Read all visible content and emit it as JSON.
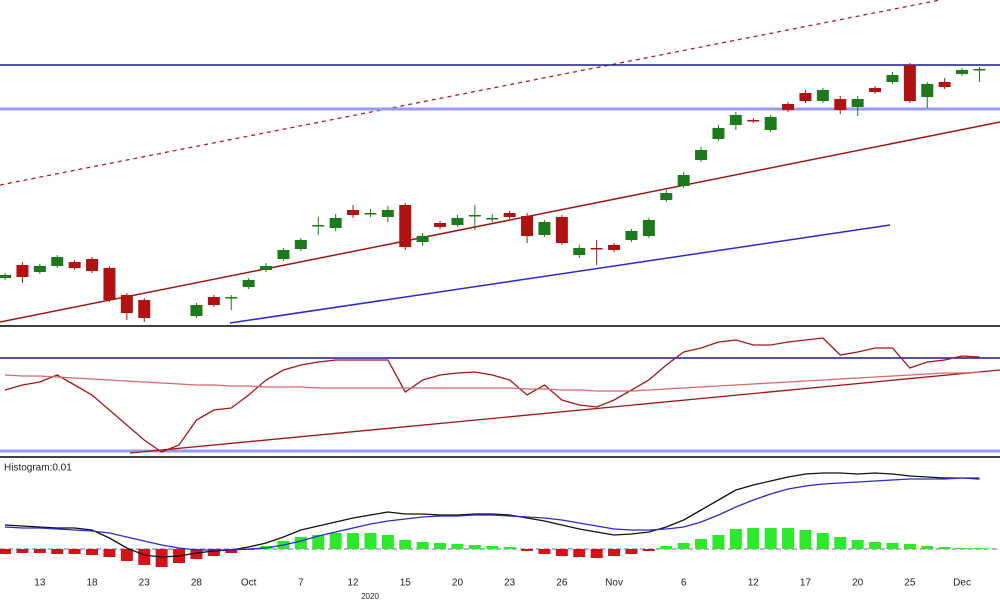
{
  "chart_data": [
    {
      "type": "candlestick",
      "xlim": [
        -0.29,
        57.18
      ],
      "ylim": [
        5,
        330
      ],
      "up_color": "#1c7a1c",
      "down_color": "#b01212",
      "open": [
        52,
        65,
        58,
        64,
        68,
        71,
        62,
        35,
        30,
        null,
        null,
        14,
        33,
        32,
        43,
        60,
        71,
        81,
        104,
        102,
        120,
        117,
        113,
        125,
        88,
        107,
        105,
        114,
        112,
        117,
        114,
        95,
        113,
        75,
        82,
        85,
        90,
        94,
        130,
        144,
        170,
        191,
        205,
        210,
        200,
        226,
        237,
        229,
        231,
        223,
        242,
        248,
        265,
        233,
        248,
        256,
        261
      ],
      "high": [
        57,
        68,
        66,
        75,
        70,
        73,
        64,
        37,
        32,
        null,
        null,
        27,
        35,
        35,
        52,
        67,
        82,
        92,
        113,
        116,
        125,
        121,
        124,
        127,
        97,
        109,
        115,
        125,
        116,
        119,
        117,
        110,
        115,
        85,
        90,
        87,
        101,
        112,
        140,
        158,
        183,
        205,
        218,
        212,
        215,
        228,
        240,
        242,
        234,
        234,
        244,
        258,
        267,
        248,
        252,
        262,
        263
      ],
      "low": [
        50,
        47,
        56,
        62,
        60,
        57,
        28,
        10,
        8,
        null,
        null,
        12,
        23,
        20,
        41,
        58,
        69,
        79,
        95,
        99,
        112,
        113,
        108,
        80,
        84,
        101,
        103,
        100,
        108,
        111,
        87,
        93,
        85,
        72,
        65,
        78,
        88,
        92,
        128,
        142,
        168,
        189,
        200,
        207,
        198,
        218,
        227,
        227,
        216,
        214,
        236,
        246,
        227,
        222,
        241,
        254,
        248
      ],
      "close": [
        55,
        53,
        64,
        73,
        62,
        59,
        30,
        17,
        12,
        null,
        null,
        25,
        25,
        33,
        50,
        64,
        80,
        90,
        105,
        112,
        115,
        117,
        120,
        83,
        94,
        103,
        112,
        115,
        112,
        113,
        94,
        108,
        87,
        82,
        81,
        80,
        99,
        110,
        137,
        155,
        180,
        202,
        215,
        209,
        213,
        220,
        229,
        240,
        220,
        231,
        238,
        255,
        229,
        246,
        243,
        260,
        261
      ]
    },
    {
      "type": "line",
      "xlim": [
        -0.29,
        57.18
      ],
      "ylim": [
        0,
        127
      ],
      "series": [
        {
          "color": "#a01818",
          "values": [
            65,
            70,
            73,
            80,
            70,
            60,
            45,
            30,
            15,
            3,
            10,
            35,
            45,
            47,
            60,
            75,
            85,
            90,
            93,
            95,
            95,
            95,
            95,
            63,
            75,
            80,
            82,
            83,
            80,
            75,
            60,
            70,
            55,
            50,
            48,
            55,
            65,
            75,
            90,
            103,
            107,
            113,
            115,
            110,
            110,
            113,
            115,
            117,
            100,
            103,
            107,
            107,
            87,
            93,
            95,
            99,
            98
          ]
        },
        {
          "color": "#d86a6a",
          "values": [
            80,
            79,
            79,
            78,
            77,
            76,
            75,
            74,
            73,
            72,
            71,
            70,
            70,
            69,
            69,
            68,
            68,
            68,
            67,
            67,
            67,
            67,
            67,
            67,
            67,
            67,
            67,
            67,
            67,
            67,
            66,
            66,
            65,
            65,
            64,
            64,
            64,
            65,
            66,
            67,
            68,
            69,
            70,
            71,
            72,
            73,
            74,
            75,
            76,
            77,
            78,
            79,
            80,
            81,
            82,
            82,
            83
          ]
        }
      ]
    },
    {
      "type": "combo",
      "title": "Histogram:0.01",
      "xlim": [
        -0.29,
        57.18
      ],
      "ylim": [
        -41,
        89
      ],
      "xticks": [
        {
          "value": 2,
          "label": "13"
        },
        {
          "value": 5,
          "label": "18"
        },
        {
          "value": 8,
          "label": "23"
        },
        {
          "value": 11,
          "label": "28"
        },
        {
          "value": 14,
          "label": "Oct"
        },
        {
          "value": 17,
          "label": "7"
        },
        {
          "value": 20,
          "label": "12"
        },
        {
          "value": 23,
          "label": "15"
        },
        {
          "value": 26,
          "label": "20"
        },
        {
          "value": 29,
          "label": "23"
        },
        {
          "value": 32,
          "label": "26"
        },
        {
          "value": 35,
          "label": "Nov"
        },
        {
          "value": 39,
          "label": "6"
        },
        {
          "value": 43,
          "label": "12"
        },
        {
          "value": 46,
          "label": "17"
        },
        {
          "value": 49,
          "label": "20"
        },
        {
          "value": 52,
          "label": "25"
        },
        {
          "value": 55,
          "label": "Dec"
        }
      ],
      "year_label": "2020",
      "series": [
        {
          "kind": "bar",
          "color": "#2ee82e",
          "negative_color": "#d41414",
          "values": [
            -5,
            -4,
            -4,
            -5,
            -5,
            -6,
            -8,
            -12,
            -16,
            -18,
            -14,
            -10,
            -7,
            -4,
            -1,
            3,
            8,
            12,
            14,
            16,
            16,
            16,
            14,
            9,
            7,
            6,
            5,
            4,
            3,
            2,
            -2,
            -5,
            -7,
            -8,
            -9,
            -7,
            -5,
            -2,
            3,
            6,
            10,
            14,
            20,
            21,
            21,
            21,
            19,
            16,
            12,
            9,
            7,
            6,
            5,
            3,
            2,
            1,
            1
          ]
        },
        {
          "kind": "line",
          "color": "#111111",
          "values": [
            24,
            23,
            22,
            21,
            21,
            19,
            11,
            1,
            -6,
            -8,
            -7,
            -4,
            -2,
            -1,
            2,
            6,
            12,
            19,
            23,
            27,
            31,
            34,
            37,
            35,
            35,
            34,
            34,
            35,
            35,
            34,
            31,
            28,
            24,
            20,
            17,
            14,
            15,
            17,
            22,
            29,
            39,
            49,
            59,
            64,
            68,
            72,
            75,
            76,
            76,
            75,
            76,
            75,
            73,
            72,
            71,
            71,
            70
          ]
        },
        {
          "kind": "line",
          "color": "#2a2ad0",
          "values": [
            22,
            21,
            21,
            20,
            19,
            18,
            16,
            12,
            8,
            4,
            1,
            -1,
            -1,
            -1,
            0,
            1,
            4,
            8,
            13,
            17,
            21,
            25,
            28,
            30,
            32,
            33,
            33,
            34,
            34,
            33,
            32,
            31,
            29,
            26,
            23,
            20,
            19,
            19,
            20,
            22,
            27,
            34,
            42,
            49,
            55,
            60,
            63,
            65,
            66,
            67,
            68,
            69,
            70,
            70,
            70,
            71,
            71
          ]
        }
      ]
    }
  ]
}
